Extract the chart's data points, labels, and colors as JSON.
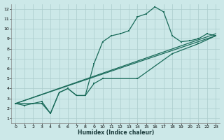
{
  "title": "",
  "xlabel": "Humidex (Indice chaleur)",
  "ylabel": "",
  "bg_color": "#cce8e8",
  "grid_color": "#aacccc",
  "line_color": "#1a6b5a",
  "xlim": [
    -0.5,
    23.5
  ],
  "ylim": [
    0.5,
    12.5
  ],
  "xticks": [
    0,
    1,
    2,
    3,
    4,
    5,
    6,
    7,
    8,
    9,
    10,
    11,
    12,
    13,
    14,
    15,
    16,
    17,
    18,
    19,
    20,
    21,
    22,
    23
  ],
  "yticks": [
    1,
    2,
    3,
    4,
    5,
    6,
    7,
    8,
    9,
    10,
    11,
    12
  ],
  "series": [
    [
      [
        0,
        2.5
      ],
      [
        1,
        2.3
      ],
      [
        2,
        2.5
      ],
      [
        3,
        2.7
      ],
      [
        4,
        1.5
      ],
      [
        5,
        3.6
      ],
      [
        6,
        4.0
      ],
      [
        7,
        3.3
      ],
      [
        8,
        3.3
      ],
      [
        9,
        6.5
      ],
      [
        10,
        8.7
      ],
      [
        11,
        9.3
      ],
      [
        12,
        9.5
      ],
      [
        13,
        9.8
      ],
      [
        14,
        11.2
      ],
      [
        15,
        11.5
      ],
      [
        16,
        12.2
      ],
      [
        17,
        11.7
      ],
      [
        18,
        9.3
      ],
      [
        19,
        8.7
      ],
      [
        20,
        8.8
      ],
      [
        21,
        9.0
      ],
      [
        22,
        9.5
      ],
      [
        23,
        9.3
      ]
    ],
    [
      [
        0,
        2.5
      ],
      [
        3,
        2.5
      ],
      [
        4,
        1.5
      ],
      [
        5,
        3.6
      ],
      [
        6,
        4.0
      ],
      [
        7,
        3.3
      ],
      [
        8,
        3.3
      ],
      [
        9,
        4.5
      ],
      [
        10,
        5.0
      ],
      [
        14,
        5.0
      ],
      [
        18,
        7.5
      ],
      [
        21,
        8.5
      ],
      [
        23,
        9.3
      ]
    ],
    [
      [
        0,
        2.5
      ],
      [
        23,
        9.5
      ]
    ],
    [
      [
        0,
        2.5
      ],
      [
        23,
        9.3
      ]
    ]
  ]
}
